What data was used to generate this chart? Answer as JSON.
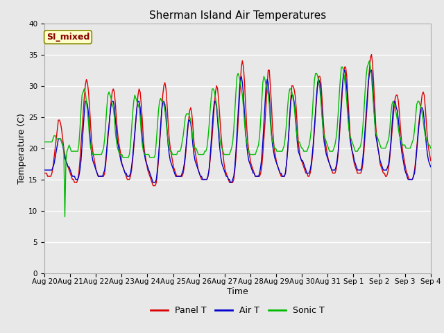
{
  "title": "Sherman Island Air Temperatures",
  "xlabel": "Time",
  "ylabel": "Temperature (C)",
  "ylim": [
    0,
    40
  ],
  "yticks": [
    0,
    5,
    10,
    15,
    20,
    25,
    30,
    35,
    40
  ],
  "legend_labels": [
    "Panel T",
    "Air T",
    "Sonic T"
  ],
  "legend_colors": [
    "#dd0000",
    "#0000cc",
    "#00bb00"
  ],
  "annotation_text": "SI_mixed",
  "annotation_bg": "#ffffcc",
  "annotation_border": "#888800",
  "annotation_text_color": "#880000",
  "background_color": "#e8e8e8",
  "grid_color": "#ffffff",
  "tick_labels": [
    "Aug 20",
    "Aug 21",
    "Aug 22",
    "Aug 23",
    "Aug 24",
    "Aug 25",
    "Aug 26",
    "Aug 27",
    "Aug 28",
    "Aug 29",
    "Aug 30",
    "Aug 31",
    "Sep 1",
    "Sep 2",
    "Sep 3",
    "Sep 4"
  ],
  "n_days": 15,
  "panel_t": [
    16.0,
    16.0,
    16.0,
    15.5,
    15.5,
    15.5,
    15.5,
    16.0,
    17.0,
    18.5,
    20.0,
    21.5,
    23.0,
    24.5,
    24.5,
    24.0,
    23.0,
    21.5,
    20.0,
    19.0,
    18.0,
    17.5,
    17.0,
    16.5,
    16.0,
    15.5,
    15.0,
    15.0,
    14.5,
    14.5,
    14.5,
    15.0,
    16.0,
    18.0,
    20.5,
    23.0,
    25.5,
    28.0,
    30.0,
    31.0,
    30.5,
    29.0,
    26.5,
    23.5,
    21.0,
    19.5,
    18.5,
    17.5,
    16.5,
    16.0,
    15.5,
    15.5,
    15.5,
    15.5,
    15.5,
    15.5,
    16.0,
    17.5,
    19.5,
    21.5,
    23.5,
    25.5,
    27.5,
    29.0,
    29.5,
    29.0,
    27.0,
    24.5,
    22.5,
    21.0,
    20.0,
    19.0,
    17.5,
    17.0,
    16.5,
    16.0,
    15.5,
    15.0,
    15.0,
    15.0,
    15.5,
    16.5,
    18.0,
    20.0,
    22.0,
    24.5,
    26.5,
    28.5,
    29.5,
    29.0,
    27.0,
    24.5,
    21.5,
    19.5,
    18.5,
    17.5,
    16.5,
    16.0,
    15.5,
    15.0,
    14.5,
    14.0,
    14.0,
    14.0,
    14.5,
    16.0,
    18.0,
    20.5,
    23.0,
    26.0,
    28.5,
    30.0,
    30.5,
    29.5,
    27.0,
    24.0,
    21.5,
    20.0,
    19.0,
    18.0,
    17.0,
    16.5,
    16.0,
    15.5,
    15.5,
    15.5,
    15.5,
    15.5,
    15.5,
    16.0,
    17.0,
    18.5,
    20.5,
    22.5,
    24.5,
    26.0,
    26.5,
    25.5,
    23.5,
    21.0,
    19.5,
    18.5,
    17.5,
    16.5,
    16.0,
    15.5,
    15.0,
    15.0,
    15.0,
    15.0,
    15.0,
    15.0,
    15.5,
    16.5,
    18.0,
    20.0,
    22.0,
    24.5,
    27.0,
    29.0,
    30.0,
    29.5,
    27.5,
    25.0,
    22.5,
    20.5,
    19.0,
    17.5,
    16.5,
    16.0,
    15.5,
    15.0,
    14.5,
    14.5,
    14.5,
    14.5,
    15.0,
    16.5,
    18.5,
    21.0,
    24.0,
    27.0,
    30.0,
    33.0,
    34.0,
    33.0,
    30.5,
    27.0,
    23.5,
    21.0,
    19.5,
    18.5,
    17.5,
    17.0,
    16.5,
    16.0,
    15.5,
    15.5,
    15.5,
    15.5,
    15.5,
    16.0,
    17.0,
    19.0,
    21.5,
    24.0,
    27.0,
    30.0,
    32.5,
    32.5,
    30.0,
    27.0,
    23.5,
    21.0,
    19.5,
    18.5,
    17.5,
    17.0,
    16.5,
    16.0,
    15.5,
    15.5,
    15.5,
    15.5,
    16.0,
    17.5,
    19.5,
    22.0,
    25.0,
    28.0,
    30.0,
    30.0,
    29.5,
    28.5,
    26.5,
    23.5,
    21.0,
    19.5,
    18.5,
    18.0,
    17.5,
    17.0,
    16.5,
    16.0,
    16.0,
    15.5,
    15.5,
    16.0,
    17.0,
    18.5,
    20.5,
    23.0,
    25.5,
    28.0,
    30.5,
    31.5,
    31.5,
    30.5,
    28.0,
    25.0,
    22.5,
    21.0,
    20.0,
    19.0,
    18.0,
    17.5,
    17.0,
    16.5,
    16.0,
    16.0,
    16.0,
    16.5,
    17.5,
    19.0,
    21.5,
    24.0,
    26.5,
    29.5,
    32.0,
    33.0,
    33.0,
    31.5,
    28.5,
    25.5,
    22.5,
    20.5,
    19.5,
    18.5,
    17.5,
    17.0,
    16.5,
    16.0,
    16.0,
    16.0,
    16.0,
    16.5,
    17.5,
    19.5,
    22.0,
    24.5,
    27.0,
    30.0,
    32.5,
    34.5,
    35.0,
    33.5,
    30.5,
    27.0,
    23.5,
    21.5,
    20.0,
    19.0,
    17.5,
    17.0,
    16.5,
    16.0,
    16.0,
    15.5,
    15.5,
    16.0,
    17.0,
    18.5,
    20.5,
    22.5,
    24.5,
    26.5,
    28.0,
    28.5,
    28.5,
    27.5,
    25.5,
    23.0,
    21.0,
    19.5,
    18.5,
    17.5,
    16.5,
    16.0,
    15.5,
    15.0,
    15.0,
    15.0,
    15.0,
    15.5,
    16.5,
    18.0,
    20.0,
    22.0,
    24.0,
    25.5,
    27.0,
    28.5,
    29.0,
    28.5,
    26.5,
    24.0,
    21.5,
    20.0,
    19.0,
    18.0
  ],
  "air_t": [
    16.5,
    16.5,
    16.5,
    16.5,
    16.5,
    16.5,
    16.5,
    16.5,
    17.0,
    17.5,
    18.5,
    19.5,
    20.5,
    21.5,
    21.5,
    21.5,
    21.0,
    20.5,
    19.5,
    18.5,
    18.0,
    17.5,
    17.0,
    17.0,
    16.5,
    16.0,
    15.5,
    15.5,
    15.5,
    15.0,
    15.0,
    15.0,
    15.5,
    16.5,
    18.0,
    20.5,
    23.0,
    25.5,
    27.5,
    27.5,
    27.0,
    25.5,
    23.0,
    20.5,
    19.0,
    18.0,
    17.5,
    17.0,
    16.5,
    16.0,
    15.5,
    15.5,
    15.5,
    15.5,
    15.5,
    16.0,
    16.5,
    18.0,
    20.0,
    22.0,
    23.5,
    25.5,
    27.0,
    27.5,
    27.5,
    26.5,
    24.5,
    22.5,
    21.0,
    20.0,
    19.0,
    18.0,
    17.5,
    17.0,
    16.5,
    16.0,
    16.0,
    15.5,
    15.5,
    15.5,
    16.0,
    17.0,
    18.5,
    20.5,
    22.5,
    24.5,
    26.5,
    27.5,
    27.5,
    26.5,
    24.0,
    21.5,
    20.0,
    19.0,
    18.0,
    17.5,
    17.0,
    16.5,
    16.0,
    15.5,
    15.0,
    14.5,
    14.5,
    14.5,
    15.0,
    16.5,
    18.5,
    21.0,
    23.5,
    26.0,
    27.5,
    27.5,
    27.0,
    25.5,
    23.0,
    20.5,
    19.0,
    18.0,
    17.5,
    17.0,
    16.5,
    16.0,
    15.5,
    15.5,
    15.5,
    15.5,
    15.5,
    15.5,
    16.0,
    16.5,
    17.5,
    19.0,
    21.0,
    23.0,
    24.5,
    24.5,
    24.0,
    22.5,
    20.5,
    19.0,
    18.0,
    17.5,
    17.0,
    16.5,
    16.0,
    15.5,
    15.5,
    15.0,
    15.0,
    15.0,
    15.0,
    15.0,
    15.5,
    16.5,
    18.5,
    21.0,
    23.5,
    26.0,
    27.5,
    27.5,
    26.5,
    24.5,
    22.0,
    20.0,
    18.5,
    17.5,
    17.0,
    16.5,
    16.0,
    15.5,
    15.5,
    15.0,
    15.0,
    14.5,
    14.5,
    15.0,
    15.5,
    17.0,
    19.5,
    22.5,
    25.5,
    28.5,
    31.0,
    31.5,
    30.5,
    28.5,
    25.5,
    22.5,
    20.5,
    19.0,
    18.0,
    17.5,
    17.0,
    16.5,
    16.0,
    16.0,
    15.5,
    15.5,
    15.5,
    15.5,
    16.0,
    17.0,
    18.5,
    21.0,
    24.0,
    27.0,
    30.0,
    31.0,
    30.5,
    28.5,
    25.5,
    22.5,
    20.5,
    19.5,
    18.5,
    18.0,
    17.5,
    17.0,
    16.5,
    16.0,
    16.0,
    15.5,
    15.5,
    15.5,
    16.0,
    17.5,
    19.5,
    22.0,
    25.0,
    27.5,
    28.5,
    28.5,
    27.5,
    26.0,
    23.5,
    21.0,
    19.5,
    19.0,
    18.5,
    18.0,
    18.0,
    17.5,
    17.0,
    16.5,
    16.0,
    16.0,
    16.0,
    16.5,
    17.5,
    19.0,
    21.0,
    23.5,
    26.0,
    28.5,
    30.5,
    31.0,
    30.5,
    28.5,
    26.0,
    23.0,
    21.0,
    20.0,
    19.0,
    18.5,
    18.0,
    17.5,
    17.0,
    16.5,
    16.5,
    16.5,
    16.5,
    17.0,
    18.0,
    19.5,
    22.0,
    25.0,
    27.5,
    30.0,
    32.0,
    32.5,
    31.5,
    29.5,
    26.5,
    23.5,
    21.5,
    20.5,
    19.5,
    19.0,
    18.0,
    17.5,
    17.0,
    16.5,
    16.5,
    16.5,
    16.5,
    17.0,
    18.5,
    20.5,
    23.0,
    25.5,
    28.0,
    30.5,
    32.0,
    32.5,
    32.5,
    30.5,
    27.5,
    24.5,
    22.0,
    21.0,
    20.0,
    19.0,
    18.0,
    17.5,
    17.0,
    16.5,
    16.5,
    16.5,
    16.5,
    17.0,
    17.5,
    19.0,
    21.0,
    23.5,
    26.0,
    27.5,
    27.5,
    26.5,
    26.0,
    24.5,
    22.5,
    21.0,
    19.5,
    18.5,
    17.5,
    16.5,
    16.0,
    15.5,
    15.0,
    15.0,
    15.0,
    15.0,
    15.0,
    15.5,
    16.0,
    17.5,
    19.5,
    21.5,
    23.5,
    25.0,
    26.5,
    26.5,
    26.0,
    24.5,
    22.5,
    20.5,
    19.0,
    18.0,
    17.5,
    17.0
  ],
  "sonic_t": [
    21.0,
    21.0,
    21.0,
    21.0,
    21.0,
    21.0,
    21.0,
    21.0,
    21.5,
    22.0,
    22.0,
    21.5,
    21.5,
    21.5,
    21.5,
    21.5,
    21.0,
    20.5,
    20.0,
    9.0,
    18.0,
    19.5,
    20.0,
    20.5,
    20.0,
    19.5,
    19.5,
    19.5,
    19.5,
    19.5,
    19.5,
    19.5,
    20.5,
    23.0,
    26.0,
    28.5,
    29.0,
    29.5,
    29.0,
    27.5,
    26.0,
    24.0,
    21.5,
    20.0,
    19.5,
    19.0,
    19.0,
    19.0,
    19.0,
    19.0,
    19.0,
    19.0,
    19.0,
    19.0,
    19.5,
    20.0,
    21.5,
    24.0,
    26.5,
    28.5,
    29.0,
    28.5,
    28.0,
    27.0,
    26.5,
    25.0,
    22.5,
    21.0,
    20.0,
    19.5,
    19.0,
    19.0,
    19.0,
    18.5,
    18.5,
    18.5,
    18.5,
    18.5,
    18.5,
    19.0,
    20.5,
    23.0,
    25.5,
    27.5,
    28.5,
    28.0,
    27.5,
    27.0,
    26.5,
    25.0,
    22.5,
    20.5,
    19.5,
    19.0,
    19.0,
    19.0,
    19.0,
    19.0,
    18.5,
    18.5,
    18.5,
    18.5,
    18.5,
    19.0,
    21.0,
    23.5,
    26.0,
    27.5,
    28.0,
    27.5,
    27.5,
    27.0,
    26.0,
    24.5,
    22.5,
    21.0,
    20.0,
    19.5,
    19.5,
    19.0,
    19.0,
    19.0,
    19.0,
    19.0,
    19.5,
    19.5,
    19.5,
    20.0,
    21.0,
    22.0,
    23.5,
    25.0,
    25.5,
    25.5,
    25.5,
    25.0,
    24.5,
    23.0,
    21.5,
    20.5,
    20.0,
    20.0,
    19.5,
    19.0,
    19.0,
    19.0,
    19.0,
    19.0,
    19.0,
    19.5,
    19.5,
    20.0,
    21.5,
    23.5,
    26.0,
    28.0,
    29.5,
    29.5,
    29.0,
    28.0,
    27.0,
    25.5,
    23.5,
    21.5,
    20.5,
    20.0,
    19.5,
    19.0,
    19.0,
    19.0,
    19.0,
    19.0,
    19.0,
    19.5,
    20.0,
    21.0,
    23.0,
    26.0,
    29.0,
    31.5,
    32.0,
    31.5,
    30.5,
    29.5,
    28.5,
    26.5,
    24.0,
    22.0,
    21.0,
    20.0,
    19.5,
    19.0,
    19.0,
    19.0,
    19.0,
    19.0,
    19.0,
    19.5,
    20.0,
    20.5,
    22.0,
    24.5,
    27.5,
    30.5,
    31.5,
    31.0,
    30.0,
    29.5,
    28.5,
    27.0,
    24.0,
    22.0,
    21.0,
    20.5,
    20.0,
    20.0,
    19.5,
    19.5,
    19.5,
    19.5,
    19.5,
    19.5,
    20.0,
    20.5,
    22.0,
    24.0,
    26.5,
    28.5,
    29.5,
    29.5,
    29.0,
    28.0,
    27.0,
    25.0,
    23.0,
    21.5,
    21.0,
    21.0,
    20.5,
    20.0,
    20.0,
    19.5,
    19.5,
    19.5,
    19.5,
    20.0,
    20.5,
    21.5,
    23.0,
    25.5,
    28.5,
    31.0,
    32.0,
    32.0,
    31.5,
    30.5,
    29.5,
    27.5,
    25.0,
    23.0,
    22.0,
    21.5,
    21.0,
    20.5,
    20.0,
    19.5,
    19.5,
    19.5,
    19.5,
    20.0,
    20.5,
    21.5,
    23.0,
    25.5,
    28.5,
    31.0,
    33.0,
    33.0,
    32.5,
    31.0,
    29.5,
    27.5,
    25.0,
    23.0,
    22.0,
    21.5,
    21.0,
    20.5,
    20.0,
    19.5,
    19.5,
    19.5,
    20.0,
    20.0,
    20.5,
    21.5,
    23.5,
    26.0,
    29.0,
    31.5,
    33.0,
    33.5,
    34.0,
    33.0,
    31.5,
    29.0,
    26.5,
    24.0,
    22.5,
    22.0,
    21.5,
    21.0,
    20.5,
    20.0,
    20.0,
    20.0,
    20.0,
    20.0,
    20.5,
    21.0,
    21.5,
    23.0,
    25.5,
    27.0,
    27.5,
    27.0,
    26.5,
    25.5,
    24.5,
    23.0,
    22.0,
    21.5,
    21.0,
    20.5,
    20.5,
    20.5,
    20.0,
    20.0,
    20.0,
    20.0,
    20.0,
    20.5,
    21.0,
    21.5,
    23.0,
    25.0,
    27.0,
    27.5,
    27.5,
    27.0,
    26.5,
    25.5,
    24.5,
    23.0,
    22.0,
    21.5,
    21.0,
    20.5,
    20.5,
    20.0
  ]
}
